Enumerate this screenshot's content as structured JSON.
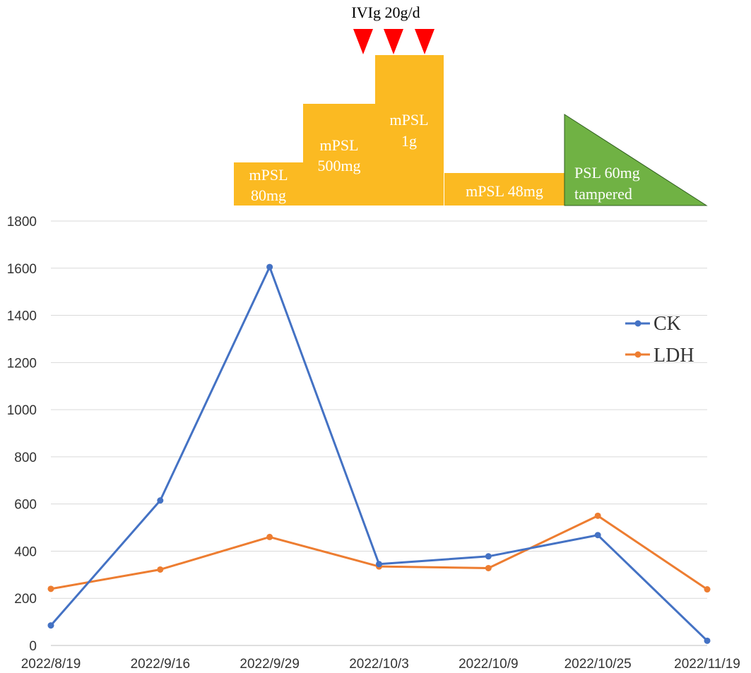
{
  "chart_data": {
    "type": "line",
    "categories": [
      "2022/8/19",
      "2022/9/16",
      "2022/9/29",
      "2022/10/3",
      "2022/10/9",
      "2022/10/25",
      "2022/11/19"
    ],
    "series": [
      {
        "name": "CK",
        "values": [
          85,
          615,
          1605,
          345,
          378,
          468,
          20
        ],
        "color": "#4472C4"
      },
      {
        "name": "LDH",
        "values": [
          240,
          322,
          460,
          335,
          328,
          550,
          238
        ],
        "color": "#ED7D31"
      }
    ],
    "yticks": [
      "0",
      "200",
      "400",
      "600",
      "800",
      "1000",
      "1200",
      "1400",
      "1600",
      "1800"
    ],
    "ylim": [
      0,
      1800
    ],
    "grid": true,
    "legend_position": "right",
    "treatments": {
      "mpsl_80": [
        "mPSL",
        "80mg"
      ],
      "mpsl_500": [
        "mPSL",
        "500mg"
      ],
      "mpsl_1g": [
        "mPSL",
        "1g"
      ],
      "mpsl_48": "mPSL 48mg",
      "psl_60": [
        "PSL 60mg",
        "tampered"
      ],
      "ivig": "IVIg 20g/d",
      "ivig_doses": 3,
      "steroid_color": "#FBBA22",
      "taper_color": "#70B244",
      "marker_color": "#FF0000"
    }
  }
}
